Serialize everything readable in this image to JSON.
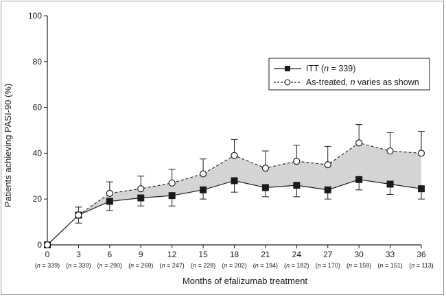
{
  "chart_data": {
    "type": "line",
    "title": "",
    "xlabel": "Months of efalizumab treatment",
    "ylabel": "Patients achieving PASI-90 (%)",
    "ylim": [
      0,
      100
    ],
    "yticks": [
      "0",
      "20",
      "40",
      "60",
      "80",
      "100"
    ],
    "x": [
      0,
      3,
      6,
      9,
      12,
      15,
      18,
      21,
      24,
      27,
      30,
      33,
      36
    ],
    "x_tick_labels": [
      "0",
      "3",
      "6",
      "9",
      "12",
      "15",
      "18",
      "21",
      "24",
      "27",
      "30",
      "33",
      "36"
    ],
    "n_labels": [
      "(n = 339)",
      "(n = 339)",
      "(n = 290)",
      "(n = 269)",
      "(n = 247)",
      "(n = 228)",
      "(n = 202)",
      "(n = 194)",
      "(n = 182)",
      "(n = 170)",
      "(n = 159)",
      "(n = 151)",
      "(n = 113)"
    ],
    "grid": false,
    "legend_position": "upper-right",
    "shaded_region_between_series": true,
    "shade_color": "#d4d4d4",
    "series": [
      {
        "name": "ITT (n = 339)",
        "line_style": "solid",
        "marker": "filled-square",
        "values": [
          0,
          13,
          19,
          20.5,
          21.5,
          24,
          28,
          25,
          26,
          24,
          28.5,
          26.5,
          24.5
        ],
        "error_lower": [
          0,
          9.5,
          15,
          17,
          17,
          20,
          23,
          21,
          21,
          20,
          24,
          22,
          20
        ]
      },
      {
        "name": "As-treated, n varies as shown",
        "line_style": "dashed",
        "marker": "open-circle",
        "values": [
          0,
          13,
          22.5,
          24.5,
          27,
          31,
          39,
          33.5,
          36.5,
          35,
          44.5,
          41,
          40
        ],
        "error_upper": [
          0,
          16.5,
          27.5,
          30,
          33,
          37.5,
          46,
          41,
          43.5,
          43,
          52.5,
          49,
          49.5
        ]
      }
    ]
  },
  "legend": {
    "itt_label": "ITT (",
    "itt_n": "n",
    "itt_rest": " = 339)",
    "as_treated_label": "As-treated, ",
    "as_treated_n": "n",
    "as_treated_rest": " varies as shown"
  },
  "colors": {
    "line": "#1a1a1a",
    "shade": "#d4d4d4",
    "background": "#ffffff"
  }
}
